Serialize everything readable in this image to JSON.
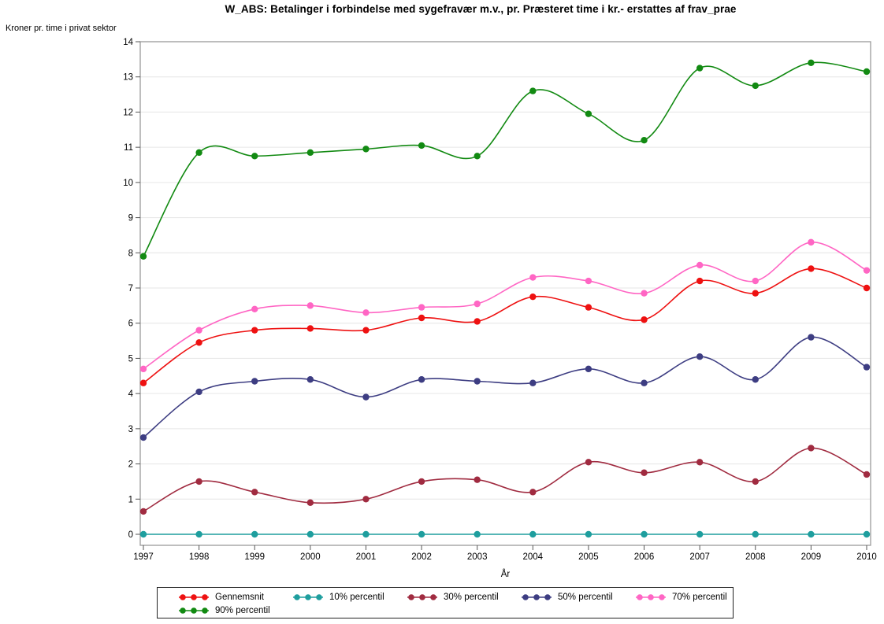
{
  "title": "W_ABS: Betalinger i forbindelse med sygefravær m.v., pr. Præsteret time i kr.- erstattes af frav_prae",
  "y_axis_title": "Kroner pr. time i privat sektor",
  "x_axis_title": "År",
  "colors": {
    "grid": "#E6E6E6",
    "frame": "#9A9A9A",
    "tick": "#555555",
    "text": "#000000"
  },
  "chart_data": {
    "type": "line",
    "x": [
      1997,
      1998,
      1999,
      2000,
      2001,
      2002,
      2003,
      2004,
      2005,
      2006,
      2007,
      2008,
      2009,
      2010
    ],
    "xlabel": "År",
    "ylabel": "Kroner pr. time i privat sektor",
    "ylim": [
      0,
      14
    ],
    "yticks": [
      0,
      1,
      2,
      3,
      4,
      5,
      6,
      7,
      8,
      9,
      10,
      11,
      12,
      13,
      14
    ],
    "grid": "horizontal",
    "legend_position": "bottom",
    "interpolation": "spline",
    "series": [
      {
        "name": "Gennemsnit",
        "color": "#EE1111",
        "values": [
          4.3,
          5.45,
          5.8,
          5.85,
          5.8,
          6.15,
          6.05,
          6.75,
          6.45,
          6.1,
          7.2,
          6.85,
          7.55,
          7.0
        ]
      },
      {
        "name": "10% percentil",
        "color": "#1E9E9E",
        "values": [
          0,
          0,
          0,
          0,
          0,
          0,
          0,
          0,
          0,
          0,
          0,
          0,
          0,
          0
        ]
      },
      {
        "name": "30% percentil",
        "color": "#A02B40",
        "values": [
          0.65,
          1.5,
          1.2,
          0.9,
          1.0,
          1.5,
          1.55,
          1.2,
          2.05,
          1.75,
          2.05,
          1.5,
          2.45,
          1.7
        ]
      },
      {
        "name": "50% percentil",
        "color": "#3D3D82",
        "values": [
          2.75,
          4.05,
          4.35,
          4.4,
          3.9,
          4.4,
          4.35,
          4.3,
          4.7,
          4.3,
          5.05,
          4.4,
          5.6,
          4.75
        ]
      },
      {
        "name": "70% percentil",
        "color": "#FF66C4",
        "values": [
          4.7,
          5.8,
          6.4,
          6.5,
          6.3,
          6.45,
          6.55,
          7.3,
          7.2,
          6.85,
          7.65,
          7.2,
          8.3,
          7.5
        ]
      },
      {
        "name": "90% percentil",
        "color": "#128A12",
        "values": [
          7.9,
          10.85,
          10.75,
          10.85,
          10.95,
          11.05,
          10.75,
          12.6,
          11.95,
          11.2,
          13.25,
          12.75,
          13.4,
          13.15
        ]
      }
    ]
  }
}
